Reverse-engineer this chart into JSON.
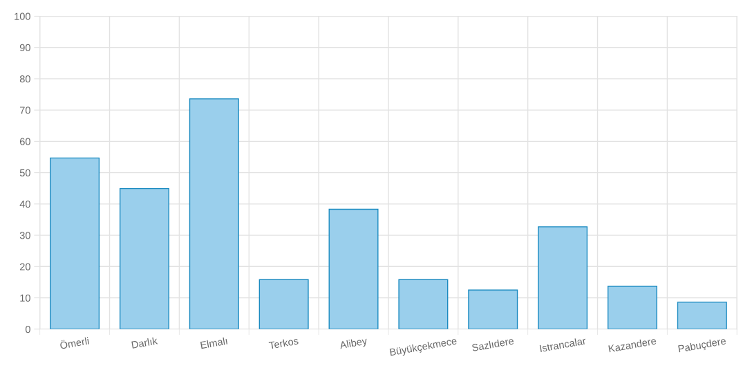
{
  "chart_data": {
    "type": "bar",
    "categories": [
      "Ömerli",
      "Darlık",
      "Elmalı",
      "Terkos",
      "Alibey",
      "Büyükçekmece",
      "Sazlıdere",
      "Istrancalar",
      "Kazandere",
      "Pabuçdere"
    ],
    "series": [
      {
        "color": "#9acfec",
        "values": [
          54.7,
          44.9,
          73.6,
          15.8,
          38.3,
          15.8,
          12.5,
          32.7,
          13.7,
          8.6
        ]
      }
    ],
    "ylim": [
      0,
      100
    ],
    "yticks": [
      0,
      10,
      20,
      30,
      40,
      50,
      60,
      70,
      80,
      90,
      100
    ],
    "grid": true
  }
}
